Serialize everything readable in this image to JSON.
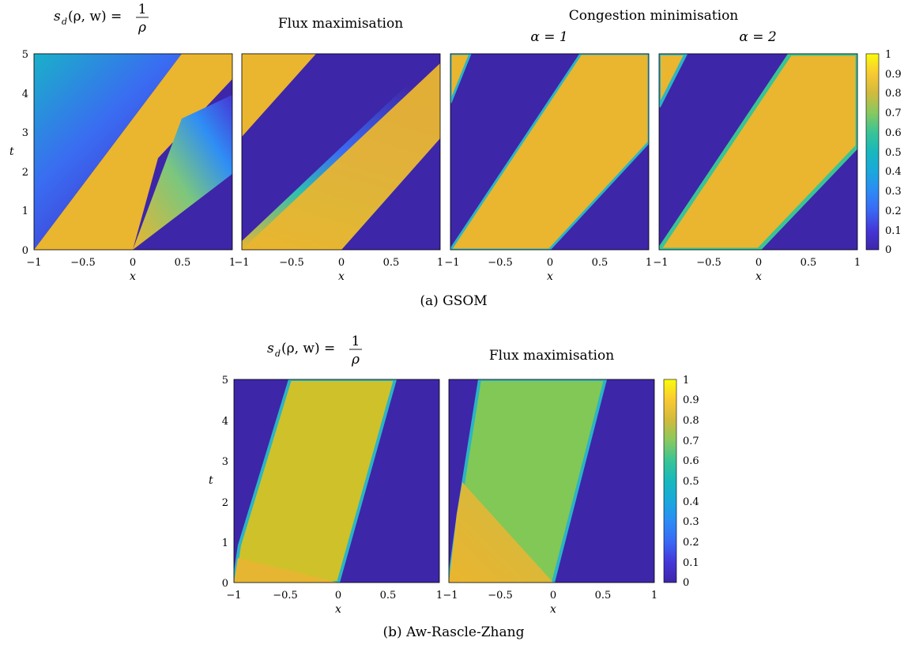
{
  "figure_a": {
    "caption": "(a) GSOM",
    "group_title": "Congestion minimisation",
    "panels": [
      {
        "title_lhs": "s",
        "title_sub": "d",
        "title_args": "(ρ, w) = ",
        "title_num": "1",
        "title_den": "ρ"
      },
      {
        "title": "Flux maximisation"
      },
      {
        "title": "α = 1"
      },
      {
        "title": "α = 2"
      }
    ],
    "xlabel": "x",
    "ylabel": "t",
    "xticks": [
      "−1",
      "−0.5",
      "0",
      "0.5",
      "1"
    ],
    "yticks": [
      "0",
      "1",
      "2",
      "3",
      "4",
      "5"
    ],
    "colorbar_ticks": [
      "0",
      "0.1",
      "0.2",
      "0.3",
      "0.4",
      "0.5",
      "0.6",
      "0.7",
      "0.8",
      "0.9",
      "1"
    ]
  },
  "figure_b": {
    "caption": "(b) Aw-Rascle-Zhang",
    "panels": [
      {
        "title_lhs": "s",
        "title_sub": "d",
        "title_args": "(ρ, w) = ",
        "title_num": "1",
        "title_den": "ρ"
      },
      {
        "title": "Flux maximisation"
      }
    ],
    "xlabel": "x",
    "ylabel": "t",
    "xticks": [
      "−1",
      "−0.5",
      "0",
      "0.5",
      "1"
    ],
    "yticks": [
      "0",
      "1",
      "2",
      "3",
      "4",
      "5"
    ],
    "colorbar_ticks": [
      "0",
      "0.1",
      "0.2",
      "0.3",
      "0.4",
      "0.5",
      "0.6",
      "0.7",
      "0.8",
      "0.9",
      "1"
    ]
  },
  "colors": {
    "low": "#3e26a8",
    "blue": "#2f80ff",
    "cyan": "#13beb8",
    "green": "#7bcc4b",
    "orange": "#eab52f",
    "olive": "#cfc12a",
    "high": "#f9fb0e"
  },
  "chart_data": [
    {
      "type": "heatmap",
      "panel": "GSOM s_d(ρ,w)=1/ρ",
      "xlim": [
        -1,
        1
      ],
      "ylim": [
        0,
        5
      ],
      "clim": [
        0,
        1
      ]
    },
    {
      "type": "heatmap",
      "panel": "GSOM Flux maximisation",
      "xlim": [
        -1,
        1
      ],
      "ylim": [
        0,
        5
      ],
      "clim": [
        0,
        1
      ]
    },
    {
      "type": "heatmap",
      "panel": "GSOM Congestion minimisation α = 1",
      "xlim": [
        -1,
        1
      ],
      "ylim": [
        0,
        5
      ],
      "clim": [
        0,
        1
      ]
    },
    {
      "type": "heatmap",
      "panel": "GSOM Congestion minimisation α = 2",
      "xlim": [
        -1,
        1
      ],
      "ylim": [
        0,
        5
      ],
      "clim": [
        0,
        1
      ]
    },
    {
      "type": "heatmap",
      "panel": "ARZ s_d(ρ,w)=1/ρ",
      "xlim": [
        -1,
        1
      ],
      "ylim": [
        0,
        5
      ],
      "clim": [
        0,
        1
      ]
    },
    {
      "type": "heatmap",
      "panel": "ARZ Flux maximisation",
      "xlim": [
        -1,
        1
      ],
      "ylim": [
        0,
        5
      ],
      "clim": [
        0,
        1
      ]
    }
  ]
}
